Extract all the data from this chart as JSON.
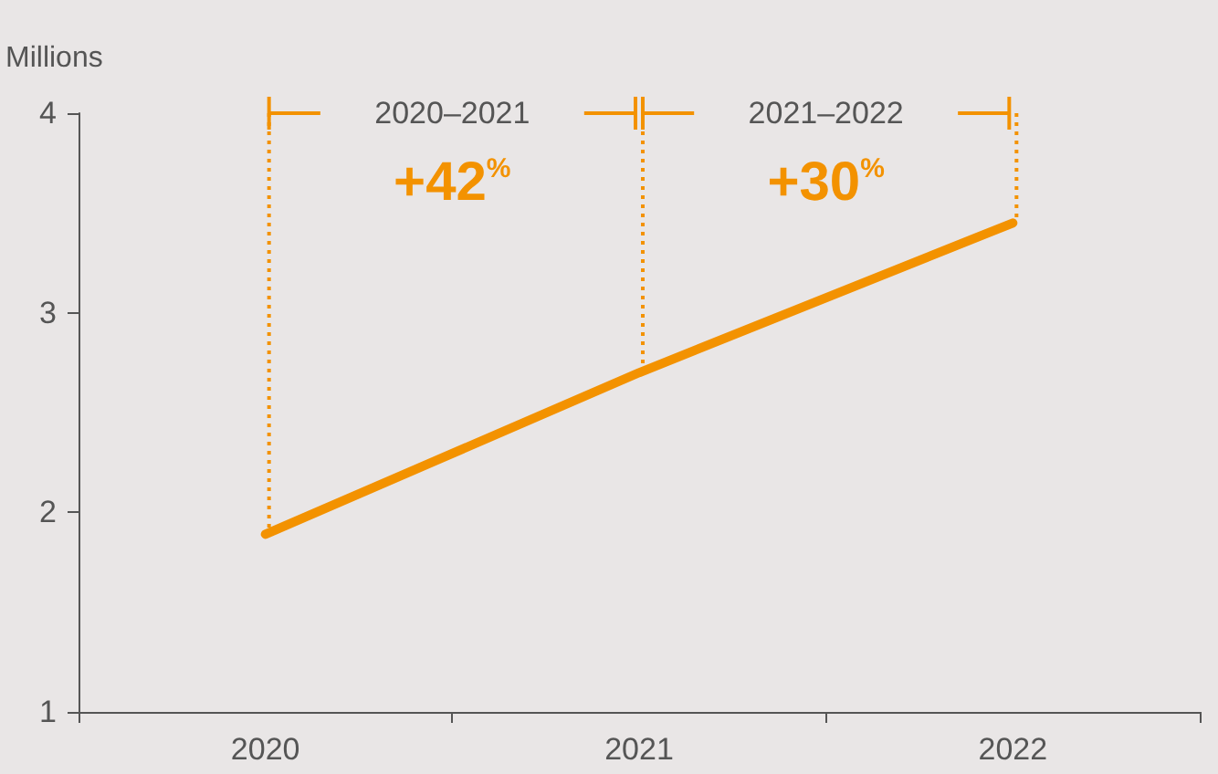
{
  "chart_data": {
    "type": "line",
    "ylabel": "Millions",
    "categories": [
      "2020",
      "2021",
      "2022"
    ],
    "series": [
      {
        "color": "#f39200",
        "values": [
          1.89,
          2.7,
          3.45
        ]
      }
    ],
    "ylim": [
      1,
      4
    ],
    "yticks": [
      1,
      2,
      3,
      4
    ],
    "grid": false,
    "marker": "none",
    "line_style": "solid",
    "annotations": [
      "2020–2021",
      "+42$^{%}$",
      "2021–2022",
      "+30$^{%}$"
    ]
  }
}
